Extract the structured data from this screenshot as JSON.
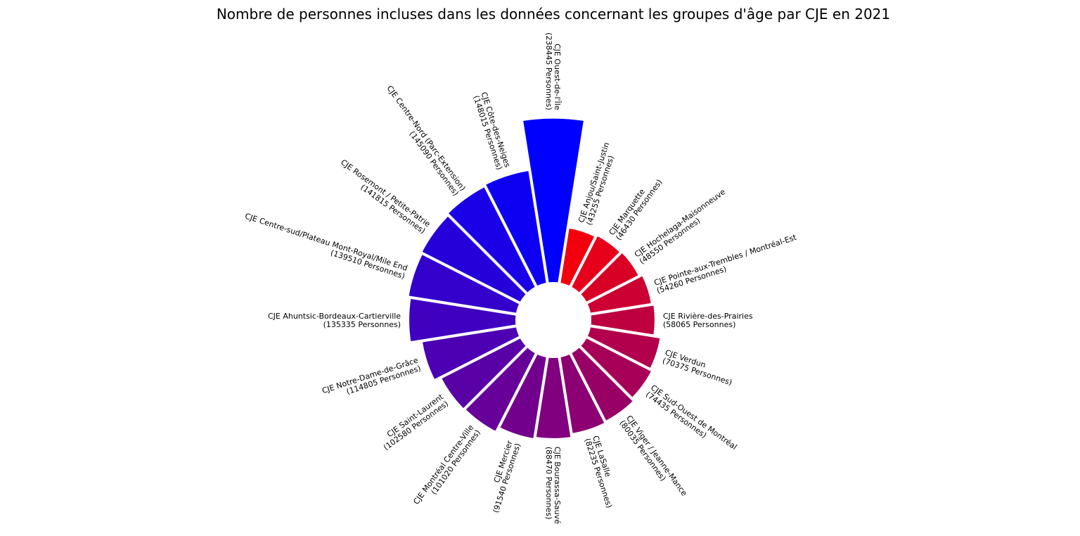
{
  "chart_data": {
    "type": "bar",
    "subtype": "circular-bar",
    "title": "Nombre de personnes incluses dans les données concernant les groupes d'âge par CJE en 2021",
    "unit_label": "Personnes",
    "color_low": "#ff0000",
    "color_high": "#0000ff",
    "categories": [
      "CJE Ouest-de-l'Île",
      "CJE Anjou/Saint-Justin",
      "CJE Marquette",
      "CJE Hochelaga-Maisonneuve",
      "CJE Pointe-aux-Trembles / Montréal-Est",
      "CJE Rivière-des-Prairies",
      "CJE Verdun",
      "CJE Sud-Ouest de Montréal",
      "CJE Viger / Jeanne-Mance",
      "CJE LaSalle",
      "CJE Bourassa-Sauvé",
      "CJE Mercier",
      "CJE Montréal Centre-Ville",
      "CJE Saint-Laurent",
      "CJE Notre-Dame-de-Grâce",
      "CJE Ahuntsic-Bordeaux-Cartierville",
      "CJE Centre-sud/Plateau Mont-Royal/Mile End",
      "CJE Rosemont / Petite-Patrie",
      "CJE Centre-Nord (Parc-Extension)",
      "CJE Côte-des-Neiges"
    ],
    "values": [
      238445,
      43255,
      46430,
      48550,
      54260,
      58065,
      70375,
      74435,
      80035,
      82235,
      88470,
      91540,
      101020,
      102580,
      114805,
      135335,
      139510,
      141815,
      145090,
      148015
    ],
    "value_labels": [
      "(238445 Personnes)",
      "(43255 Personnes)",
      "(46430 Personnes)",
      "(48550 Personnes)",
      "(54260 Personnes)",
      "(58065 Personnes)",
      "(70375 Personnes)",
      "(74435 Personnes)",
      "(80035 Personnes)",
      "(82235 Personnes)",
      "(88470 Personnes)",
      "(91540 Personnes)",
      "(101020 Personnes)",
      "(102580 Personnes)",
      "(114805 Personnes)",
      "(135335 Personnes)",
      "(139510 Personnes)",
      "(141815 Personnes)",
      "(145090 Personnes)",
      "(148015 Personnes)"
    ]
  }
}
